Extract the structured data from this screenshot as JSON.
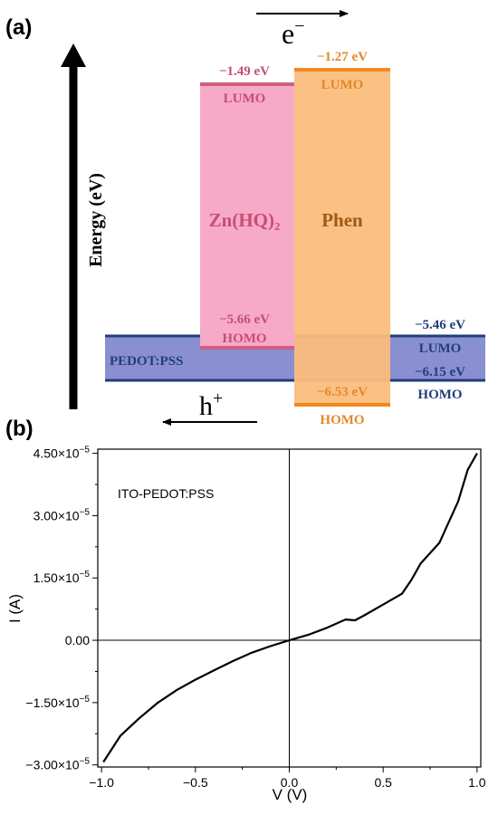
{
  "panel_a": {
    "label": "(a)",
    "y_axis_label": "Energy (eV)",
    "electron_symbol": "e",
    "electron_superscript": "−",
    "hole_symbol": "h",
    "hole_superscript": "+",
    "pedot": {
      "name": "PEDOT:PSS",
      "lumo_value": "−5.46 eV",
      "lumo_label": "LUMO",
      "homo_value": "−6.15 eV",
      "homo_label": "HOMO",
      "fill": "#8a8fd1",
      "line": "#1f3f7a",
      "text": "#1f3f7a"
    },
    "znhq": {
      "name": "Zn(HQ)₂",
      "lumo_value": "−1.49 eV",
      "lumo_label": "LUMO",
      "homo_value": "−5.66 eV",
      "homo_label": "HOMO",
      "fill": "#f7a9c8",
      "line": "#d0607f",
      "text": "#c74e73"
    },
    "phen": {
      "name": "Phen",
      "lumo_value": "−1.27 eV",
      "lumo_label": "LUMO",
      "homo_value": "−6.53 eV",
      "homo_label": "HOMO",
      "fill": "#fbbd7c",
      "line": "#f08a1f",
      "text": "#e08a2a",
      "name_color": "#9c5a14"
    }
  },
  "panel_b": {
    "label": "(b)",
    "annotation": "ITO-PEDOT:PSS"
  },
  "chart_data": {
    "type": "line",
    "xlabel": "V (V)",
    "ylabel": "I (A)",
    "xlim": [
      -1.02,
      1.02
    ],
    "ylim": [
      -3.05e-05,
      4.6e-05
    ],
    "x_ticks": [
      -1.0,
      -0.5,
      0.0,
      0.5,
      1.0
    ],
    "x_tick_labels": [
      "−1.0",
      "−0.5",
      "0.0",
      "0.5",
      "1.0"
    ],
    "y_ticks": [
      -3e-05,
      -1.5e-05,
      0.0,
      1.5e-05,
      3e-05,
      4.5e-05
    ],
    "y_tick_labels": [
      {
        "mantissa": "−3.00×10",
        "exponent": "−5"
      },
      {
        "mantissa": "−1.50×10",
        "exponent": "−5"
      },
      {
        "mantissa": "0.00",
        "exponent": ""
      },
      {
        "mantissa": "1.50×10",
        "exponent": "−5"
      },
      {
        "mantissa": "3.00×10",
        "exponent": "−5"
      },
      {
        "mantissa": "4.50×10",
        "exponent": "−5"
      }
    ],
    "grid": false,
    "series": [
      {
        "color": "#000000",
        "x": [
          -0.99,
          -0.9,
          -0.8,
          -0.7,
          -0.6,
          -0.5,
          -0.4,
          -0.3,
          -0.2,
          -0.1,
          0.0,
          0.1,
          0.2,
          0.3,
          0.35,
          0.4,
          0.5,
          0.6,
          0.65,
          0.7,
          0.8,
          0.9,
          0.95,
          1.0
        ],
        "y": [
          -2.93e-05,
          -2.3e-05,
          -1.88e-05,
          -1.5e-05,
          -1.2e-05,
          -9.5e-06,
          -7.2e-06,
          -5e-06,
          -3e-06,
          -1.4e-06,
          0.0,
          1.3e-06,
          3e-06,
          5e-06,
          4.8e-06,
          6e-06,
          8.6e-06,
          1.12e-05,
          1.45e-05,
          1.85e-05,
          2.35e-05,
          3.35e-05,
          4.1e-05,
          4.5e-05
        ]
      }
    ]
  }
}
